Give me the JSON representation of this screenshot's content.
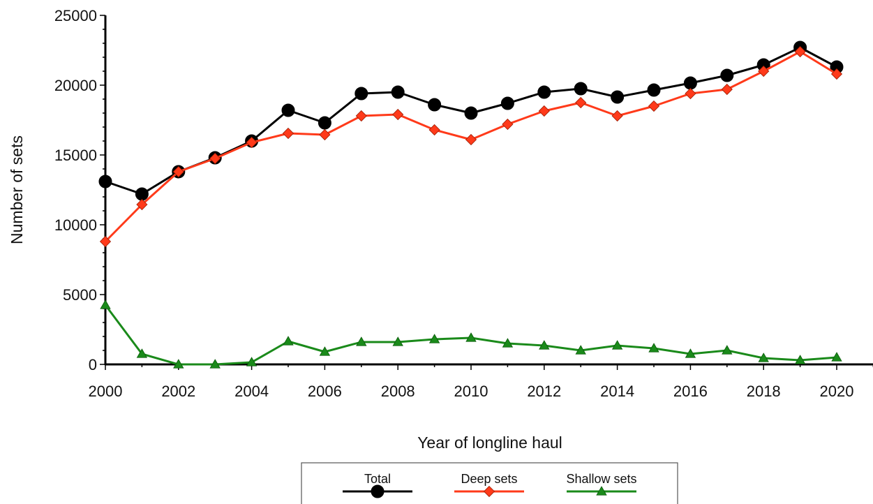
{
  "chart_data": {
    "type": "line",
    "title": "",
    "xlabel": "Year of longline haul",
    "ylabel": "Number of sets",
    "xlim": [
      2000,
      2021
    ],
    "ylim": [
      0,
      25000
    ],
    "x_ticks": [
      2000,
      2002,
      2004,
      2006,
      2008,
      2010,
      2012,
      2014,
      2016,
      2018,
      2020
    ],
    "y_ticks": [
      0,
      5000,
      10000,
      15000,
      20000,
      25000
    ],
    "grid": false,
    "legend_position": "bottom-center",
    "x": [
      2000,
      2001,
      2002,
      2003,
      2004,
      2005,
      2006,
      2007,
      2008,
      2009,
      2010,
      2011,
      2012,
      2013,
      2014,
      2015,
      2016,
      2017,
      2018,
      2019,
      2020
    ],
    "series": [
      {
        "name": "Total",
        "color": "#000000",
        "marker": "circle",
        "values": [
          13100,
          12200,
          13800,
          14800,
          16000,
          18200,
          17300,
          19400,
          19500,
          18600,
          18000,
          18700,
          19500,
          19750,
          19150,
          19650,
          20150,
          20700,
          21450,
          22700,
          21300
        ]
      },
      {
        "name": "Deep sets",
        "color": "#ff3a1a",
        "marker": "diamond",
        "values": [
          8800,
          11450,
          13800,
          14750,
          15900,
          16550,
          16450,
          17800,
          17900,
          16800,
          16100,
          17200,
          18150,
          18750,
          17800,
          18500,
          19400,
          19700,
          21000,
          22400,
          20800
        ]
      },
      {
        "name": "Shallow sets",
        "color": "#1a8a1a",
        "marker": "triangle",
        "values": [
          4250,
          750,
          0,
          0,
          150,
          1650,
          900,
          1600,
          1600,
          1800,
          1900,
          1500,
          1350,
          1000,
          1350,
          1150,
          750,
          1000,
          450,
          300,
          500
        ]
      }
    ]
  }
}
